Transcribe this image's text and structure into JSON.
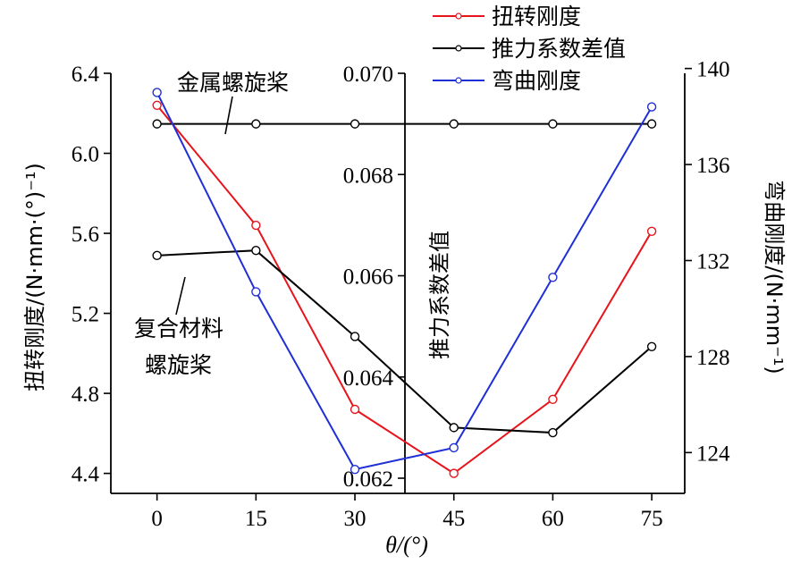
{
  "chart_data": {
    "type": "line",
    "x": [
      0,
      15,
      30,
      45,
      60,
      75
    ],
    "xticks": [
      "0",
      "15",
      "30",
      "45",
      "60",
      "75"
    ],
    "xlabel": "θ/(°)",
    "xlim": [
      -7,
      80
    ],
    "left_axis": {
      "label": "扭转刚度/(N·mm·(°)⁻¹)",
      "ylim": [
        4.3,
        6.4
      ],
      "ticks": [
        4.4,
        4.8,
        5.2,
        5.6,
        6.0,
        6.4
      ],
      "tick_labels": [
        "4.4",
        "4.8",
        "5.2",
        "5.6",
        "6.0",
        "6.4"
      ]
    },
    "middle_axis": {
      "label": "推力系数差值",
      "ylim": [
        0.0617,
        0.07
      ],
      "ticks": [
        0.062,
        0.064,
        0.066,
        0.068,
        0.07
      ],
      "tick_labels": [
        "0.062",
        "0.064",
        "0.066",
        "0.068",
        "0.070"
      ]
    },
    "right_axis": {
      "label": "弯曲刚度/(N·mm⁻¹)",
      "ylim": [
        122.3,
        139.8
      ],
      "ticks": [
        124,
        128,
        132,
        136,
        140
      ],
      "tick_labels": [
        "124",
        "128",
        "132",
        "136",
        "140"
      ]
    },
    "series": [
      {
        "name": "扭转刚度",
        "axis": "left",
        "color": "#e8141c",
        "values": [
          6.24,
          5.64,
          4.72,
          4.4,
          4.77,
          5.61
        ]
      },
      {
        "name": "推力系数差值",
        "axis": "middle",
        "color": "#000000",
        "values": [
          0.0664,
          0.0665,
          0.0648,
          0.063,
          0.0629,
          0.0646
        ]
      },
      {
        "name": "弯曲刚度",
        "axis": "right",
        "color": "#1f2fd6",
        "values": [
          139.0,
          130.7,
          123.3,
          124.2,
          131.3,
          138.4
        ]
      }
    ],
    "reference_line": {
      "axis": "middle",
      "color": "#000000",
      "value": 0.069
    },
    "legend_position": "top-right",
    "annotations": {
      "metal": "金属螺旋桨",
      "composite_line1": "复合材料",
      "composite_line2": "螺旋桨"
    }
  }
}
